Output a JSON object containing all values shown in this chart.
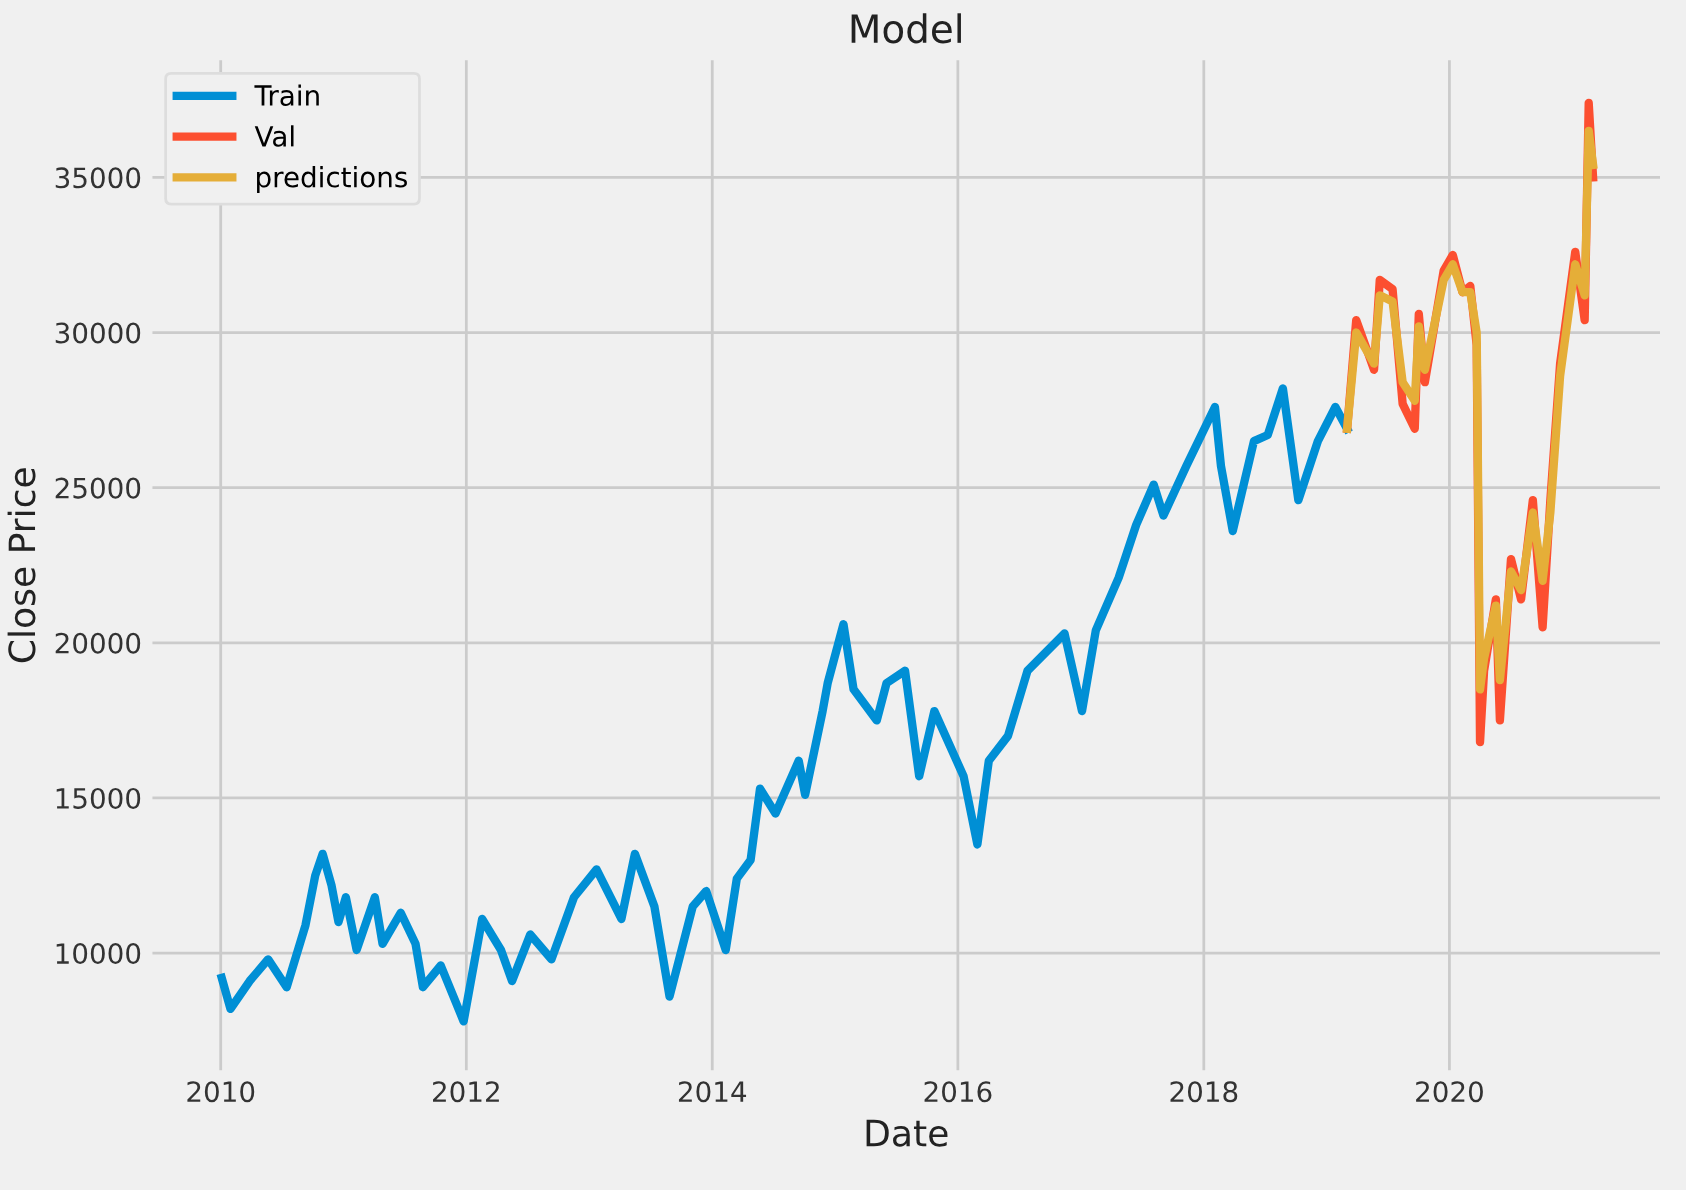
{
  "chart_data": {
    "type": "line",
    "title": "Model",
    "xlabel": "Date",
    "ylabel": "Close Price",
    "xlim": [
      "2009-06-10",
      "2021-09-20"
    ],
    "xticks": [
      {
        "value": "2010",
        "label": "2010"
      },
      {
        "value": "2012",
        "label": "2012"
      },
      {
        "value": "2014",
        "label": "2014"
      },
      {
        "value": "2016",
        "label": "2016"
      },
      {
        "value": "2018",
        "label": "2018"
      },
      {
        "value": "2020",
        "label": "2020"
      }
    ],
    "ylim": [
      6200,
      38800
    ],
    "yticks": [
      10000,
      15000,
      20000,
      25000,
      30000,
      35000
    ],
    "grid": true,
    "legend": "top left",
    "line_style": "solid",
    "marker": "none",
    "series": [
      {
        "name": "Train",
        "color": "#008fd5",
        "x": [
          "2010-01-04",
          "2010-01-30",
          "2010-03-28",
          "2010-05-22",
          "2010-07-16",
          "2010-09-10",
          "2010-10-09",
          "2010-10-31",
          "2010-11-26",
          "2010-12-17",
          "2011-01-08",
          "2011-02-09",
          "2011-04-04",
          "2011-04-27",
          "2011-06-20",
          "2011-08-03",
          "2011-08-25",
          "2011-10-17",
          "2011-12-24",
          "2012-02-17",
          "2012-04-13",
          "2012-05-16",
          "2012-07-09",
          "2012-09-10",
          "2012-11-16",
          "2013-01-22",
          "2013-04-06",
          "2013-05-16",
          "2013-07-13",
          "2013-08-27",
          "2013-11-04",
          "2013-12-14",
          "2014-02-10",
          "2014-03-15",
          "2014-04-25",
          "2014-05-23",
          "2014-07-08",
          "2014-09-15",
          "2014-10-04",
          "2014-11-25",
          "2014-12-10",
          "2015-01-26",
          "2015-02-25",
          "2015-05-05",
          "2015-06-03",
          "2015-07-28",
          "2015-09-08",
          "2015-10-23",
          "2016-01-18",
          "2016-02-28",
          "2016-04-02",
          "2016-05-29",
          "2016-07-26",
          "2016-11-13",
          "2017-01-04",
          "2017-02-14",
          "2017-04-23",
          "2017-06-14",
          "2017-08-05",
          "2017-09-03",
          "2017-11-10",
          "2018-02-03",
          "2018-02-21",
          "2018-03-28",
          "2018-05-30",
          "2018-07-10",
          "2018-08-24",
          "2018-10-09",
          "2018-12-06",
          "2019-01-27",
          "2019-03-03"
        ],
        "values": [
          9200,
          8200,
          9100,
          9800,
          8900,
          10900,
          12500,
          13200,
          12200,
          11000,
          11800,
          10100,
          11800,
          10300,
          11300,
          10300,
          8900,
          9600,
          7800,
          11100,
          10100,
          9100,
          10600,
          9800,
          11800,
          12700,
          11100,
          13200,
          11500,
          8600,
          11500,
          12000,
          10100,
          12400,
          13000,
          15300,
          14500,
          16200,
          15100,
          17800,
          18700,
          20600,
          18500,
          17500,
          18700,
          19100,
          15700,
          17800,
          15700,
          13500,
          16200,
          17000,
          19100,
          20300,
          17800,
          20400,
          22100,
          23800,
          25100,
          24100,
          25700,
          27600,
          25700,
          23600,
          26500,
          26700,
          28200,
          24600,
          26500,
          27600,
          26900
        ]
      },
      {
        "name": "Val",
        "color": "#fc4f30",
        "x": [
          "2019-03-03",
          "2019-03-30",
          "2019-05-22",
          "2019-06-08",
          "2019-07-16",
          "2019-08-15",
          "2019-09-20",
          "2019-10-02",
          "2019-10-20",
          "2019-12-15",
          "2020-01-11",
          "2020-02-09",
          "2020-03-03",
          "2020-03-22",
          "2020-04-01",
          "2020-04-13",
          "2020-05-18",
          "2020-05-30",
          "2020-07-02",
          "2020-08-01",
          "2020-09-05",
          "2020-10-04",
          "2020-10-27",
          "2020-11-25",
          "2021-01-09",
          "2021-02-06",
          "2021-02-18",
          "2021-03-03"
        ],
        "values": [
          26900,
          30400,
          28800,
          31700,
          31400,
          27700,
          26900,
          30600,
          28400,
          32000,
          32500,
          31300,
          31500,
          29600,
          16800,
          19100,
          21400,
          17500,
          22700,
          21400,
          24600,
          20500,
          24600,
          29000,
          32600,
          30400,
          37400,
          35000
        ]
      },
      {
        "name": "predictions",
        "color": "#e5ae38",
        "x": [
          "2019-03-03",
          "2019-03-30",
          "2019-05-22",
          "2019-06-08",
          "2019-07-16",
          "2019-08-15",
          "2019-09-20",
          "2019-10-02",
          "2019-10-20",
          "2019-12-15",
          "2020-01-11",
          "2020-02-09",
          "2020-03-03",
          "2020-03-22",
          "2020-04-01",
          "2020-04-13",
          "2020-05-18",
          "2020-05-30",
          "2020-07-02",
          "2020-08-01",
          "2020-09-05",
          "2020-10-04",
          "2020-10-27",
          "2020-11-25",
          "2021-01-09",
          "2021-02-06",
          "2021-02-18",
          "2021-03-03"
        ],
        "values": [
          26900,
          30000,
          29000,
          31200,
          31000,
          28400,
          27800,
          30200,
          28800,
          31700,
          32200,
          31300,
          31300,
          30000,
          18500,
          19500,
          21200,
          18800,
          22300,
          21700,
          24200,
          22000,
          24200,
          28600,
          32200,
          31200,
          36500,
          35400
        ]
      }
    ]
  }
}
